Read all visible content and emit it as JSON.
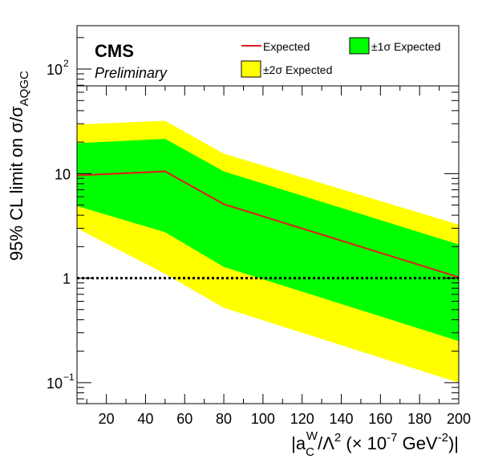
{
  "chart_data": {
    "type": "area",
    "y_scale": "log",
    "xlim": [
      5,
      200
    ],
    "ylim": [
      0.063,
      260
    ],
    "xlabel": {
      "prefix": "|a",
      "sub": "C",
      "sup1": "W",
      "mid": "/Λ",
      "sup2": "2",
      "paren_open": " (× 10",
      "sup3": "-7",
      "unit": " GeV",
      "sup4": "-2",
      "close": ")|"
    },
    "ylabel": {
      "main": "95% CL limit on  σ/σ",
      "sub": "AQGC"
    },
    "x_ticks": [
      20,
      40,
      60,
      80,
      100,
      120,
      140,
      160,
      180,
      200
    ],
    "x_tick_labels": [
      "20",
      "40",
      "60",
      "80",
      "100",
      "120",
      "140",
      "160",
      "180",
      "200"
    ],
    "y_ticks": [
      {
        "value": 0.1,
        "base": "10",
        "exp": "−1"
      },
      {
        "value": 1,
        "base": "1",
        "exp": ""
      },
      {
        "value": 10,
        "base": "10",
        "exp": ""
      },
      {
        "value": 100,
        "base": "10",
        "exp": "2"
      }
    ],
    "x": [
      5,
      50,
      80,
      200
    ],
    "series": [
      {
        "name": "Expected",
        "kind": "line",
        "color": "#e21c1c",
        "values": [
          9.6,
          10.5,
          5.1,
          1.02
        ]
      },
      {
        "name": "±1σ Expected",
        "kind": "band",
        "color": "#00ff00",
        "lower": [
          4.9,
          2.75,
          1.28,
          0.25
        ],
        "upper": [
          19.5,
          21.5,
          10.5,
          2.1
        ]
      },
      {
        "name": "±2σ Expected",
        "kind": "band",
        "color": "#ffff00",
        "lower": [
          3.0,
          1.1,
          0.52,
          0.1
        ],
        "upper": [
          29.5,
          32.0,
          15.5,
          3.25
        ]
      }
    ],
    "reference_line": {
      "y": 1,
      "style": "dotted",
      "color": "#000000"
    },
    "legend": {
      "placement": "top",
      "order": [
        "Expected",
        "±1σ Expected",
        "±2σ Expected"
      ]
    },
    "annotations": {
      "experiment": "CMS",
      "status": "Preliminary"
    },
    "grid": false
  }
}
